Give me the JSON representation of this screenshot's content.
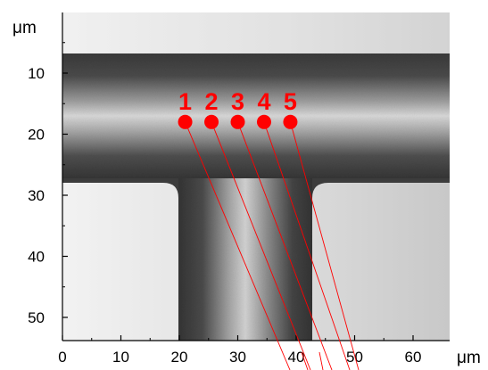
{
  "figure": {
    "unit_y": "μm",
    "unit_x": "μm",
    "x_ticks": [
      "0",
      "10",
      "20",
      "30",
      "40",
      "50",
      "60"
    ],
    "y_ticks": [
      "10",
      "20",
      "30",
      "40",
      "50"
    ],
    "points": [
      {
        "label": "1",
        "x": 21,
        "y": 18
      },
      {
        "label": "2",
        "x": 25.5,
        "y": 18
      },
      {
        "label": "3",
        "x": 30,
        "y": 18
      },
      {
        "label": "4",
        "x": 34.5,
        "y": 18
      },
      {
        "label": "5",
        "x": 39,
        "y": 18
      }
    ],
    "colors": {
      "marker": "#ff0000",
      "axis": "#000000"
    }
  }
}
